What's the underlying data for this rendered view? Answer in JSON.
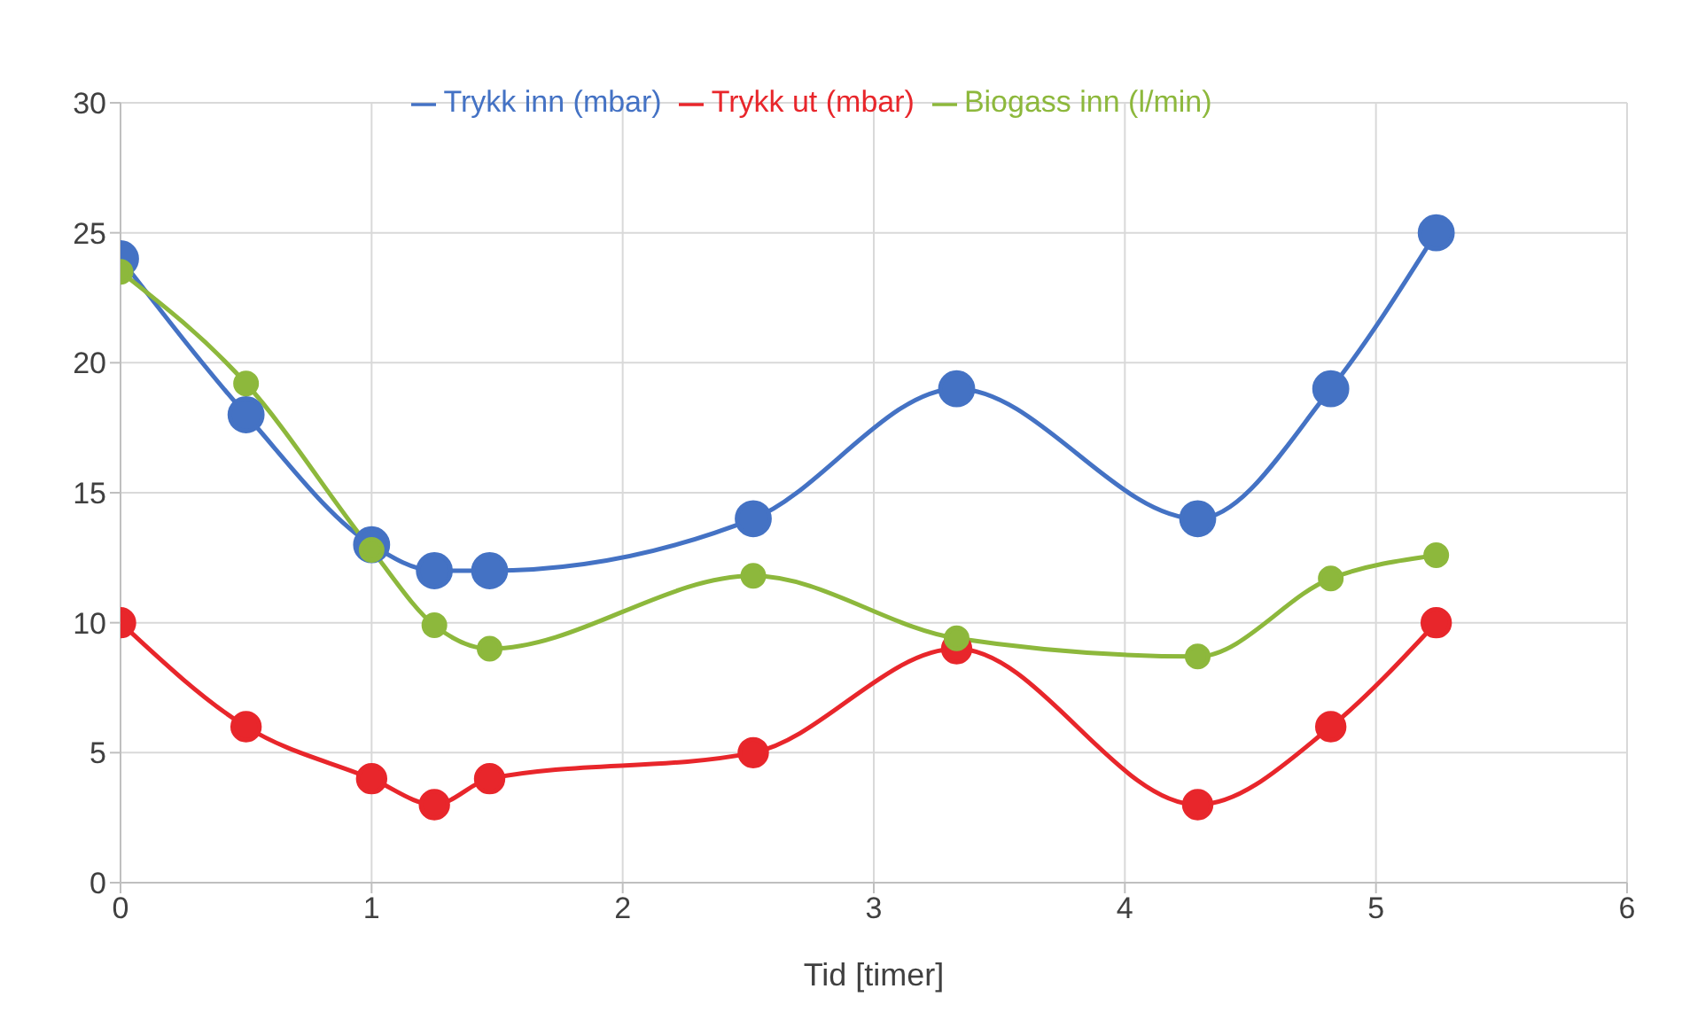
{
  "chart_data": {
    "type": "line",
    "xlabel": "Tid [timer]",
    "x": [
      0,
      0.5,
      1.0,
      1.25,
      1.47,
      2.52,
      3.33,
      4.29,
      4.82,
      5.24
    ],
    "series": [
      {
        "name": "Trykk inn (mbar)",
        "color": "#4472c4",
        "values": [
          24,
          18,
          13,
          12,
          12,
          14,
          19,
          14,
          19,
          25
        ]
      },
      {
        "name": "Trykk ut (mbar)",
        "color": "#e8262b",
        "values": [
          10,
          6,
          4,
          3,
          4,
          5,
          9,
          3,
          6,
          10
        ]
      },
      {
        "name": "Biogass inn (l/min)",
        "color": "#8db83c",
        "values": [
          23.5,
          19.2,
          12.8,
          9.9,
          9.0,
          11.8,
          9.4,
          8.7,
          11.7,
          12.6
        ]
      }
    ],
    "xlim": [
      0,
      6
    ],
    "xticks": [
      0,
      1,
      2,
      3,
      4,
      5,
      6
    ],
    "ylim": [
      0,
      30
    ],
    "yticks": [
      0,
      5,
      10,
      15,
      20,
      25,
      30
    ],
    "grid": true,
    "legend": "top",
    "marker": "circle",
    "line_style": "solid"
  }
}
